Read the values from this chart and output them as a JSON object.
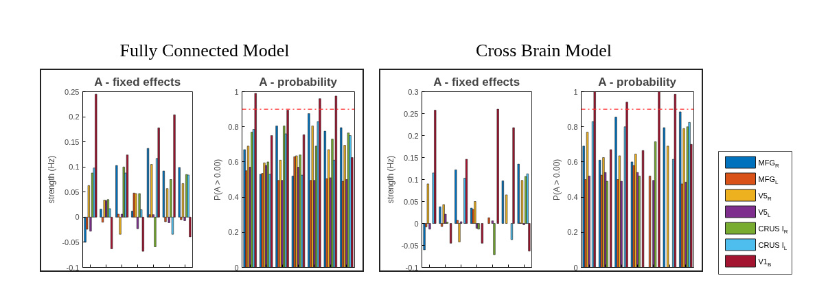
{
  "chart_data": [
    {
      "type": "bar",
      "title": "A - fixed effects",
      "ylabel": "strength (Hz)",
      "annotations": [
        "Fully Connected Model"
      ],
      "legend": "right",
      "categories": [
        null,
        null,
        null,
        null,
        null,
        null,
        null
      ],
      "ylim": [
        -0.1,
        0.25
      ],
      "yticks": [
        -0.1,
        -0.05,
        0,
        0.05,
        0.1,
        0.15,
        0.2,
        0.25
      ],
      "series": [
        {
          "name": "MFG$_{R}$",
          "color": "#0072bd",
          "values": [
            -0.05,
            0.016,
            0.103,
            0.012,
            0.137,
            0.092,
            0.099
          ]
        },
        {
          "name": "MFG$_{L}$",
          "color": "#d95319",
          "values": [
            -0.024,
            -0.01,
            0.006,
            0.048,
            0.005,
            -0.009,
            -0.005
          ]
        },
        {
          "name": "V5$_{R}$",
          "color": "#edb120",
          "values": [
            0.063,
            0.034,
            -0.034,
            0.047,
            0.105,
            0.057,
            0.067
          ]
        },
        {
          "name": "V5$_{L}$",
          "color": "#7e2f8e",
          "values": [
            -0.028,
            0.033,
            0.006,
            -0.023,
            0.005,
            -0.011,
            -0.007
          ]
        },
        {
          "name": "CRUS I$_{R}$",
          "color": "#77ac30",
          "values": [
            0.088,
            0.035,
            0.1,
            0.047,
            -0.059,
            0.075,
            0.085
          ]
        },
        {
          "name": "CRUS I$_{L}$",
          "color": "#4dbeee",
          "values": [
            0.098,
            0.017,
            0.088,
            0.015,
            0.117,
            -0.034,
            0.084
          ]
        },
        {
          "name": "V1$_{B}$",
          "color": "#a2142f",
          "values": [
            0.245,
            -0.063,
            0.124,
            -0.068,
            0.178,
            0.204,
            -0.039
          ]
        }
      ]
    },
    {
      "type": "bar",
      "title": "A - probability",
      "ylabel": "P(A > 0.00)",
      "categories": [
        null,
        null,
        null,
        null,
        null,
        null,
        null
      ],
      "ylim": [
        0,
        1
      ],
      "yticks": [
        0,
        0.2,
        0.4,
        0.6,
        0.8,
        1
      ],
      "ref_lines": [
        {
          "axis": "y",
          "value": 0.9,
          "color": "#ff3030",
          "line_style": "dashdot"
        }
      ],
      "series": [
        {
          "color": "#0072bd",
          "values": [
            0.67,
            0.53,
            0.805,
            0.52,
            0.875,
            0.775,
            0.795
          ]
        },
        {
          "color": "#d95319",
          "values": [
            0.55,
            0.535,
            0.495,
            0.63,
            0.495,
            0.505,
            0.49
          ]
        },
        {
          "color": "#edb120",
          "values": [
            0.69,
            0.595,
            0.61,
            0.635,
            0.805,
            0.67,
            0.695
          ]
        },
        {
          "color": "#7e2f8e",
          "values": [
            0.57,
            0.58,
            0.495,
            0.57,
            0.495,
            0.51,
            0.5
          ]
        },
        {
          "color": "#77ac30",
          "values": [
            0.77,
            0.6,
            0.805,
            0.64,
            0.69,
            0.73,
            0.765
          ]
        },
        {
          "color": "#4dbeee",
          "values": [
            0.785,
            0.53,
            0.76,
            0.525,
            0.83,
            0.61,
            0.75
          ]
        },
        {
          "color": "#a2142f",
          "values": [
            0.99,
            0.75,
            0.895,
            0.755,
            0.96,
            0.975,
            0.625
          ]
        }
      ]
    },
    {
      "type": "bar",
      "title": "A - fixed effects",
      "ylabel": "strength (Hz)",
      "annotations": [
        "Cross Brain Model"
      ],
      "categories": [
        null,
        null,
        null,
        null,
        null,
        null,
        null
      ],
      "ylim": [
        -0.1,
        0.3
      ],
      "yticks": [
        -0.1,
        -0.05,
        0,
        0.05,
        0.1,
        0.15,
        0.2,
        0.25,
        0.3
      ],
      "series": [
        {
          "color": "#0072bd",
          "values": [
            -0.06,
            0.038,
            0.122,
            0.035,
            null,
            0.097,
            0.135
          ]
        },
        {
          "color": "#d95319",
          "values": [
            -0.008,
            -0.007,
            0.007,
            0.032,
            0.013,
            null,
            0.001
          ]
        },
        {
          "color": "#edb120",
          "values": [
            0.09,
            0.043,
            -0.042,
            0.05,
            null,
            0.065,
            0.098
          ]
        },
        {
          "color": "#7e2f8e",
          "values": [
            -0.013,
            0.021,
            0.004,
            -0.011,
            0.006,
            null,
            -0.003
          ]
        },
        {
          "color": "#77ac30",
          "values": [
            null,
            0.003,
            null,
            -0.013,
            -0.071,
            null,
            0.107
          ]
        },
        {
          "color": "#4dbeee",
          "values": [
            0.115,
            null,
            0.103,
            null,
            null,
            -0.037,
            0.113
          ]
        },
        {
          "color": "#a2142f",
          "values": [
            0.258,
            -0.045,
            0.146,
            -0.045,
            0.26,
            0.218,
            -0.063
          ]
        }
      ]
    },
    {
      "type": "bar",
      "title": "A - probability",
      "ylabel": "P(A > 0.00)",
      "categories": [
        null,
        null,
        null,
        null,
        null,
        null,
        null
      ],
      "ylim": [
        0,
        1
      ],
      "yticks": [
        0,
        0.2,
        0.4,
        0.6,
        0.8,
        1
      ],
      "ref_lines": [
        {
          "axis": "y",
          "value": 0.9,
          "color": "#ff3030",
          "line_style": "dashdot"
        }
      ],
      "series": [
        {
          "color": "#0072bd",
          "values": [
            0.69,
            0.61,
            0.855,
            0.6,
            null,
            0.795,
            0.885
          ]
        },
        {
          "color": "#d95319",
          "values": [
            0.5,
            0.525,
            0.5,
            0.58,
            0.52,
            null,
            0.475
          ]
        },
        {
          "color": "#edb120",
          "values": [
            0.77,
            0.625,
            0.635,
            0.645,
            null,
            0.69,
            0.79
          ]
        },
        {
          "color": "#7e2f8e",
          "values": [
            0.52,
            0.54,
            0.49,
            0.54,
            0.495,
            null,
            0.485
          ]
        },
        {
          "color": "#77ac30",
          "values": [
            null,
            0.49,
            null,
            0.52,
            0.715,
            null,
            0.8
          ]
        },
        {
          "color": "#4dbeee",
          "values": [
            0.83,
            null,
            0.8,
            null,
            null,
            0.615,
            0.825
          ]
        },
        {
          "color": "#a2142f",
          "values": [
            1,
            0.67,
            0.94,
            0.665,
            1,
            0.985,
            0.7
          ]
        }
      ]
    }
  ]
}
